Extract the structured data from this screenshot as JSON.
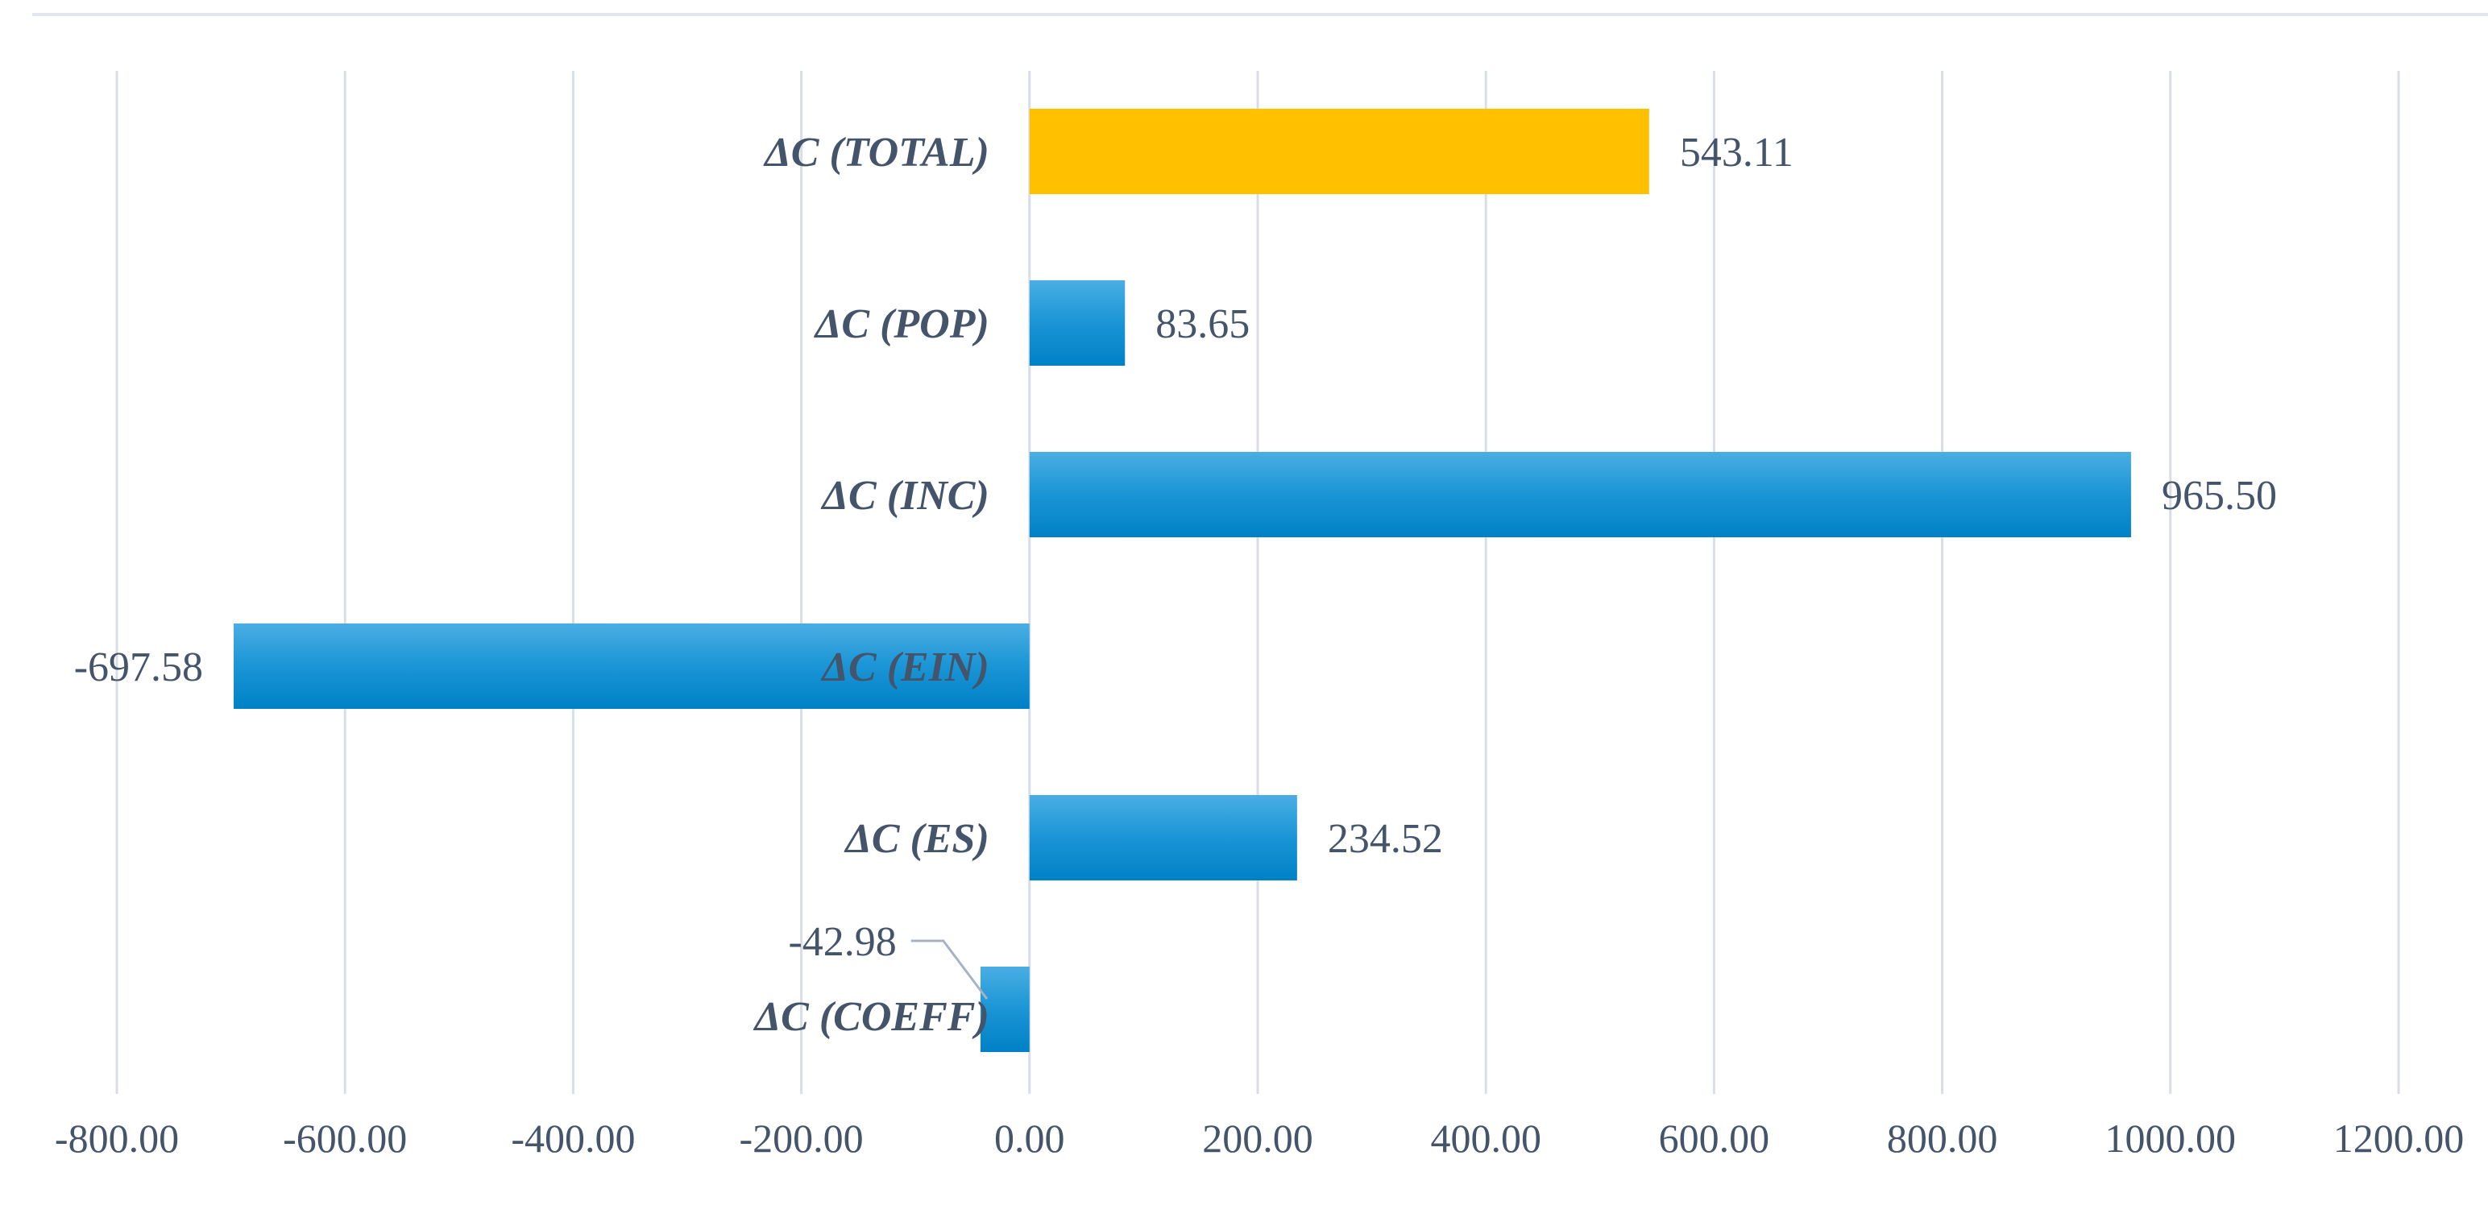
{
  "chart_data": {
    "type": "bar",
    "orientation": "horizontal",
    "categories": [
      "ΔC (TOTAL)",
      "ΔC (POP)",
      "ΔC (INC)",
      "ΔC (EIN)",
      "ΔC (ES)",
      "ΔC (COEFF)"
    ],
    "values": [
      543.11,
      83.65,
      965.5,
      -697.58,
      234.52,
      -42.98
    ],
    "value_labels": [
      "543.11",
      "83.65",
      "965.50",
      "-697.58",
      "234.52",
      "-42.98"
    ],
    "bar_colors": [
      "#ffc000",
      "#1a8fd3",
      "#1a8fd3",
      "#1a8fd3",
      "#1a8fd3",
      "#1a8fd3"
    ],
    "xlim": [
      -800,
      1200
    ],
    "x_ticks": [
      -800,
      -600,
      -400,
      -200,
      0,
      200,
      400,
      600,
      800,
      1000,
      1200
    ],
    "x_tick_labels": [
      "-800.00",
      "-600.00",
      "-400.00",
      "-200.00",
      "0.00",
      "200.00",
      "400.00",
      "600.00",
      "800.00",
      "1000.00",
      "1200.00"
    ],
    "grid": true,
    "title": "",
    "xlabel": "",
    "ylabel": ""
  },
  "colors": {
    "total_bar": "#ffc000",
    "bar_top": "#3fa7e0",
    "bar_bottom": "#0082c8",
    "gridline": "#d9dee6",
    "text": "#44546a"
  }
}
